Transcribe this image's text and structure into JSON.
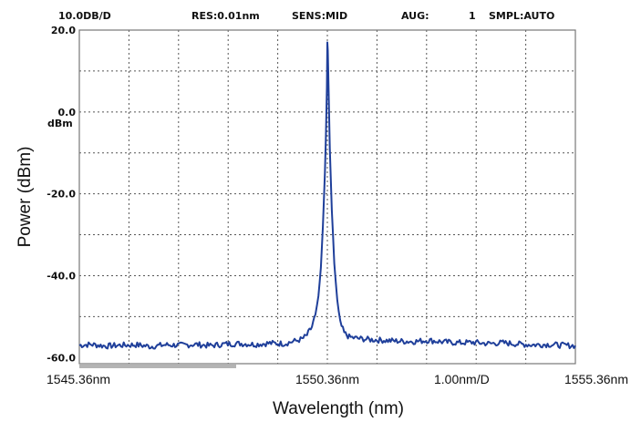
{
  "header": {
    "scale": "10.0DB/D",
    "resolution": "RES:0.01nm",
    "sensitivity": "SENS:MID",
    "averaging": "AUG:",
    "averaging_count": "1",
    "sampling": "SMPL:AUTO"
  },
  "y_unit_label": "dBm",
  "x_span_label": "1.00nm/D",
  "chart_data": {
    "type": "line",
    "xlabel": "Wavelength (nm)",
    "ylabel": "Power (dBm)",
    "xlim": [
      1545.36,
      1555.36
    ],
    "ylim": [
      -61.5,
      20.0
    ],
    "grid": true,
    "y_ticks": [
      {
        "value": 20.0,
        "label": "20.0"
      },
      {
        "value": 0.0,
        "label": "0.0"
      },
      {
        "value": -20.0,
        "label": "-20.0"
      },
      {
        "value": -40.0,
        "label": "-40.0"
      },
      {
        "value": -60.0,
        "label": "-60.0"
      }
    ],
    "x_ticks": [
      {
        "value": 1545.36,
        "label": "1545.36nm",
        "align": "start"
      },
      {
        "value": 1550.36,
        "label": "1550.36nm",
        "align": "middle"
      },
      {
        "value": 1555.36,
        "label": "1555.36nm",
        "align": "end"
      }
    ],
    "series": [
      {
        "color": "#1f3f9a",
        "x": [
          1545.36,
          1545.6,
          1545.9,
          1546.2,
          1546.5,
          1546.8,
          1547.1,
          1547.4,
          1547.7,
          1548.0,
          1548.3,
          1548.6,
          1548.9,
          1549.2,
          1549.5,
          1549.7,
          1549.85,
          1549.95,
          1550.05,
          1550.12,
          1550.18,
          1550.23,
          1550.27,
          1550.31,
          1550.33,
          1550.35,
          1550.36,
          1550.37,
          1550.39,
          1550.41,
          1550.45,
          1550.5,
          1550.56,
          1550.62,
          1550.7,
          1550.8,
          1550.95,
          1551.2,
          1551.5,
          1551.8,
          1552.1,
          1552.4,
          1552.7,
          1553.0,
          1553.3,
          1553.6,
          1553.9,
          1554.2,
          1554.5,
          1554.8,
          1555.1,
          1555.36
        ],
        "y": [
          -57.0,
          -56.8,
          -57.2,
          -57.0,
          -56.9,
          -57.3,
          -56.9,
          -57.0,
          -56.8,
          -57.1,
          -56.7,
          -56.6,
          -56.8,
          -56.5,
          -56.6,
          -56.0,
          -55.5,
          -54.5,
          -52.5,
          -49.5,
          -45.0,
          -38.0,
          -28.0,
          -15.0,
          -6.0,
          6.0,
          17.0,
          15.0,
          3.0,
          -9.0,
          -24.0,
          -37.0,
          -46.0,
          -51.5,
          -54.0,
          -55.0,
          -55.3,
          -55.6,
          -55.8,
          -56.0,
          -56.1,
          -55.8,
          -56.2,
          -56.4,
          -56.3,
          -56.6,
          -56.4,
          -56.7,
          -56.9,
          -56.8,
          -57.0,
          -57.1
        ]
      }
    ]
  }
}
